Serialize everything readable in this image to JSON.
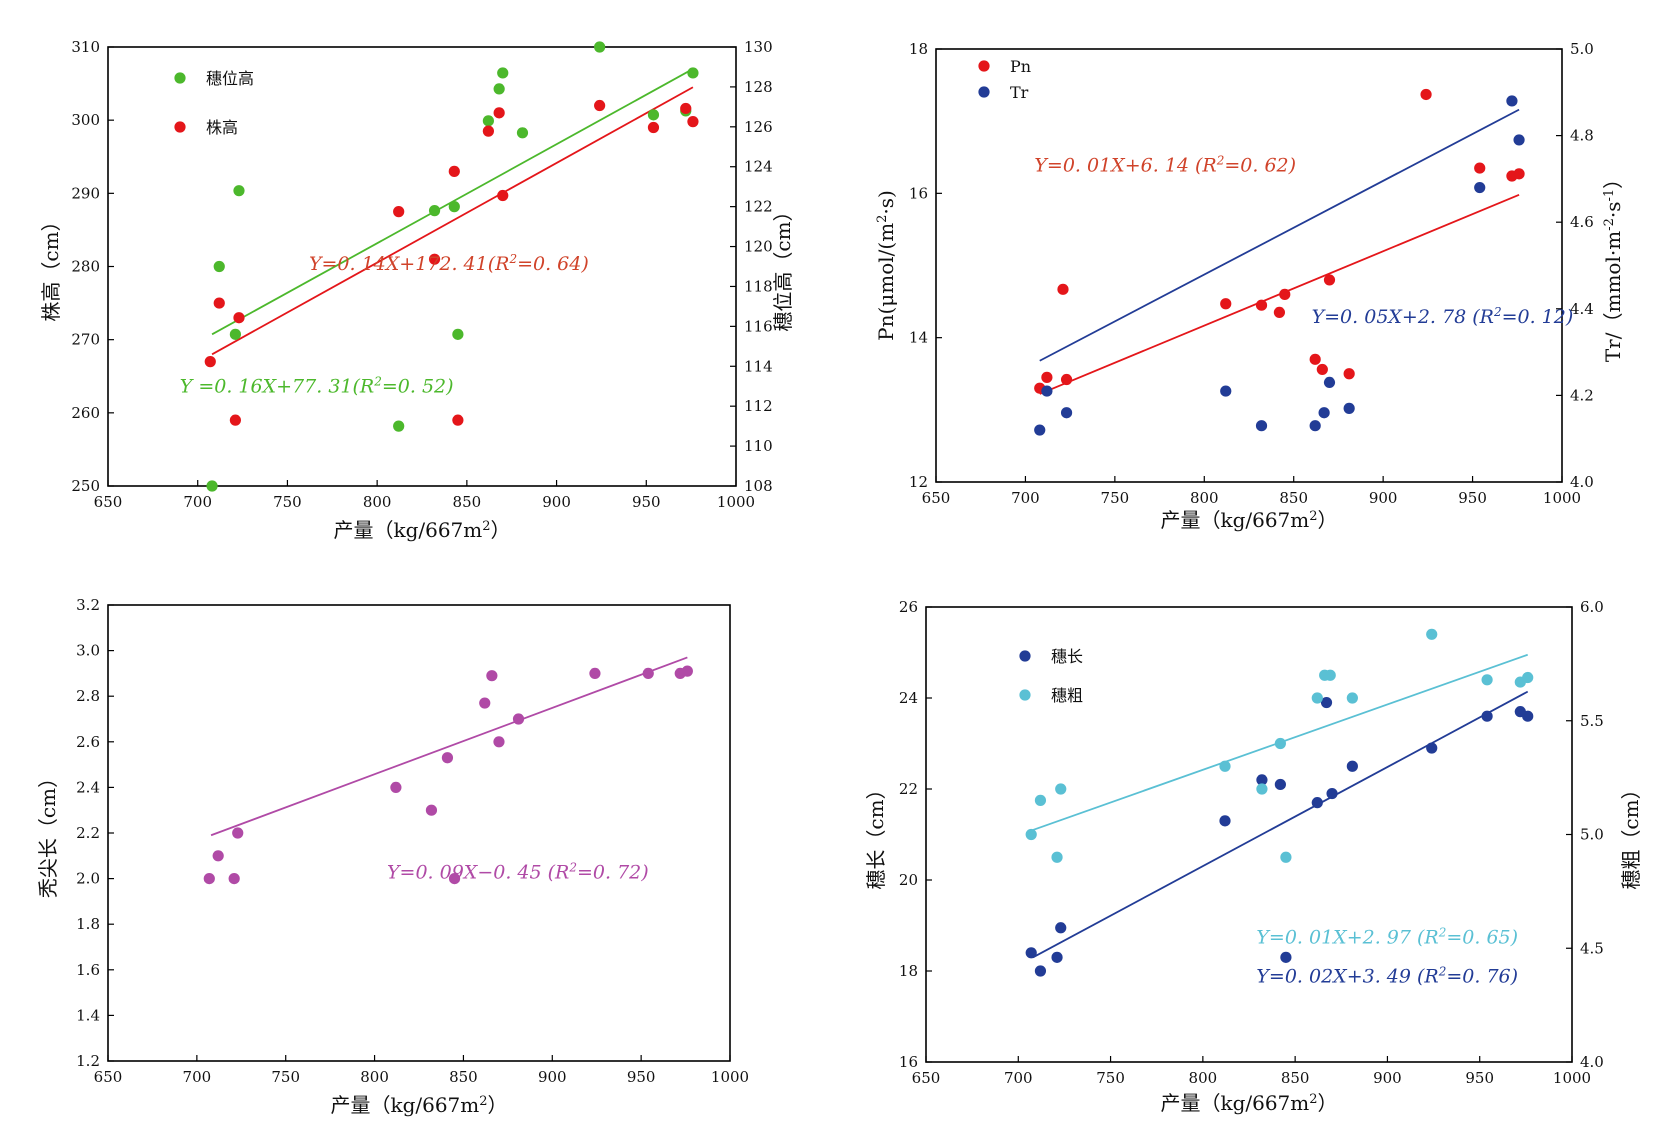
{
  "chart_data": [
    {
      "id": "p1",
      "type": "scatter",
      "xlabel": "产量（kg/667m²）",
      "ylabel": "株高（cm）",
      "ylabel2": "穗位高（cm）",
      "xlim": [
        650,
        1000
      ],
      "xticks": [
        650,
        700,
        750,
        800,
        850,
        900,
        950,
        1000
      ],
      "ylim": [
        250,
        310
      ],
      "yticks": [
        250,
        260,
        270,
        280,
        290,
        300,
        310
      ],
      "ylim2": [
        108,
        130
      ],
      "yticks2": [
        108,
        110,
        112,
        114,
        116,
        118,
        120,
        122,
        124,
        126,
        128,
        130
      ],
      "grid": false,
      "legend_position": "top-left",
      "series": [
        {
          "name": "穗位高",
          "axis": "right",
          "color": "#4cb82c",
          "x": [
            708,
            712,
            721,
            723,
            812,
            832,
            843,
            845,
            862,
            868,
            870,
            881,
            924,
            954,
            972,
            976
          ],
          "y": [
            108.0,
            119.0,
            115.6,
            122.8,
            111.0,
            121.8,
            122.0,
            115.6,
            126.3,
            127.9,
            128.7,
            125.7,
            130.0,
            126.6,
            126.8,
            128.7
          ],
          "fit": {
            "x": [
              708,
              976
            ],
            "y": [
              115.6,
              128.9
            ]
          }
        },
        {
          "name": "株高",
          "axis": "left",
          "color": "#e4161a",
          "x": [
            707,
            712,
            721,
            723,
            812,
            832,
            843,
            845,
            862,
            868,
            870,
            924,
            954,
            972,
            976
          ],
          "y": [
            267,
            275,
            259,
            273,
            287.5,
            281,
            293,
            259,
            298.5,
            301,
            289.7,
            302,
            299,
            301.6,
            299.8
          ],
          "fit": {
            "x": [
              708,
              976
            ],
            "y": [
              268.0,
              304.5
            ]
          }
        }
      ],
      "annotations": [
        {
          "text": "Y=0. 14X+172. 41(R²=0. 64)",
          "color": "#d0432a",
          "x": 762,
          "y": 279.5
        },
        {
          "text": "Y =0. 16X+77. 31(R²=0. 52)",
          "color": "#4cb82c",
          "x": 690,
          "y": 262.8
        }
      ]
    },
    {
      "id": "p2",
      "type": "scatter",
      "xlabel": "产量（kg/667m²）",
      "ylabel": "Pn(μmol/(m²·s)",
      "ylabel2": "Tr/（mmol·m⁻²·s⁻¹）",
      "xlim": [
        650,
        1000
      ],
      "xticks": [
        650,
        700,
        750,
        800,
        850,
        900,
        950,
        1000
      ],
      "ylim": [
        12,
        18
      ],
      "yticks": [
        12,
        14,
        16,
        18
      ],
      "ylim2": [
        4.0,
        5.0
      ],
      "yticks2": [
        4.0,
        4.2,
        4.4,
        4.6,
        4.8,
        5.0
      ],
      "grid": false,
      "legend_position": "top-left",
      "series": [
        {
          "name": "Pn",
          "axis": "left",
          "color": "#e4161a",
          "x": [
            708,
            712,
            721,
            723,
            812,
            832,
            842,
            845,
            862,
            866,
            870,
            881,
            924,
            954,
            972,
            976
          ],
          "y": [
            13.3,
            13.45,
            14.67,
            13.42,
            14.47,
            14.45,
            14.35,
            14.6,
            13.7,
            13.56,
            14.8,
            13.5,
            17.37,
            16.35,
            16.24,
            16.27
          ],
          "fit": {
            "x": [
              708,
              976
            ],
            "y": [
              13.22,
              15.98
            ]
          }
        },
        {
          "name": "Tr",
          "axis": "right",
          "color": "#223c96",
          "x": [
            708,
            712,
            723,
            812,
            832,
            862,
            867,
            870,
            881,
            954,
            972,
            976
          ],
          "y": [
            4.12,
            4.21,
            4.16,
            4.21,
            4.13,
            4.13,
            4.16,
            4.23,
            4.17,
            4.68,
            4.88,
            4.79
          ],
          "fit": {
            "x": [
              708,
              976
            ],
            "y": [
              4.28,
              4.86
            ]
          }
        }
      ],
      "annotations": [
        {
          "text": "Y=0. 01X+6. 14 (R²=0. 62)",
          "color": "#d0432a",
          "x": 705,
          "y": 16.3
        },
        {
          "text": "Y=0. 05X+2. 78 (R²=0. 12)",
          "color": "#223c96",
          "x": 860,
          "y": 14.2
        }
      ]
    },
    {
      "id": "p3",
      "type": "scatter",
      "xlabel": "产量（kg/667m²）",
      "ylabel": "秃尖长（cm）",
      "xlim": [
        650,
        1000
      ],
      "xticks": [
        650,
        700,
        750,
        800,
        850,
        900,
        950,
        1000
      ],
      "ylim": [
        1.2,
        3.2
      ],
      "yticks": [
        1.2,
        1.4,
        1.6,
        1.8,
        2.0,
        2.2,
        2.4,
        2.6,
        2.8,
        3.0,
        3.2
      ],
      "grid": false,
      "series": [
        {
          "name": "",
          "axis": "left",
          "color": "#b04aa6",
          "x": [
            707,
            712,
            721,
            723,
            812,
            832,
            841,
            845,
            862,
            866,
            870,
            881,
            924,
            954,
            972,
            976
          ],
          "y": [
            2.0,
            2.1,
            2.0,
            2.2,
            2.4,
            2.3,
            2.53,
            2.0,
            2.77,
            2.89,
            2.6,
            2.7,
            2.9,
            2.9,
            2.9,
            2.91
          ],
          "fit": {
            "x": [
              708,
              976
            ],
            "y": [
              2.19,
              2.97
            ]
          }
        }
      ],
      "annotations": [
        {
          "text": "Y=0. 09X−0. 45 (R²=0. 72)",
          "color": "#b04aa6",
          "x": 807,
          "y": 2.0
        }
      ]
    },
    {
      "id": "p4",
      "type": "scatter",
      "xlabel": "产量（kg/667m²）",
      "ylabel": "穗长（cm）",
      "ylabel2": "穗粗（cm）",
      "xlim": [
        650,
        1000
      ],
      "xticks": [
        650,
        700,
        750,
        800,
        850,
        900,
        950,
        1000
      ],
      "ylim": [
        16,
        26
      ],
      "yticks": [
        16,
        18,
        20,
        22,
        24,
        26
      ],
      "ylim2": [
        4.0,
        6.0
      ],
      "yticks2": [
        4.0,
        4.5,
        5.0,
        5.5,
        6.0
      ],
      "grid": false,
      "legend_position": "top-left",
      "series": [
        {
          "name": "穗长",
          "axis": "left",
          "color": "#223c96",
          "x": [
            707,
            712,
            721,
            723,
            812,
            832,
            842,
            845,
            862,
            867,
            870,
            881,
            924,
            954,
            972,
            976
          ],
          "y": [
            18.4,
            18.0,
            18.3,
            18.95,
            21.3,
            22.2,
            22.1,
            18.3,
            21.7,
            23.9,
            21.9,
            22.5,
            22.9,
            23.6,
            23.7,
            23.6
          ],
          "fit": {
            "x": [
              708,
              976
            ],
            "y": [
              18.3,
              24.14
            ]
          }
        },
        {
          "name": "穗粗",
          "axis": "right",
          "color": "#5ac0d4",
          "x": [
            707,
            712,
            721,
            723,
            812,
            832,
            842,
            845,
            862,
            866,
            869,
            881,
            924,
            954,
            972,
            976
          ],
          "y": [
            5.0,
            5.15,
            4.9,
            5.2,
            5.3,
            5.2,
            5.4,
            4.9,
            5.6,
            5.7,
            5.7,
            5.6,
            5.88,
            5.68,
            5.67,
            5.69
          ],
          "fit": {
            "x": [
              708,
              976
            ],
            "y": [
              5.02,
              5.79
            ]
          }
        }
      ],
      "annotations": [
        {
          "text": "Y=0. 01X+2. 97 (R²=0. 65)",
          "color": "#5ac0d4",
          "x": 829,
          "y": 4.52
        },
        {
          "text": "Y=0. 02X+3. 49 (R²=0. 76)",
          "color": "#223c96",
          "x": 829,
          "y": 4.35
        }
      ]
    }
  ]
}
